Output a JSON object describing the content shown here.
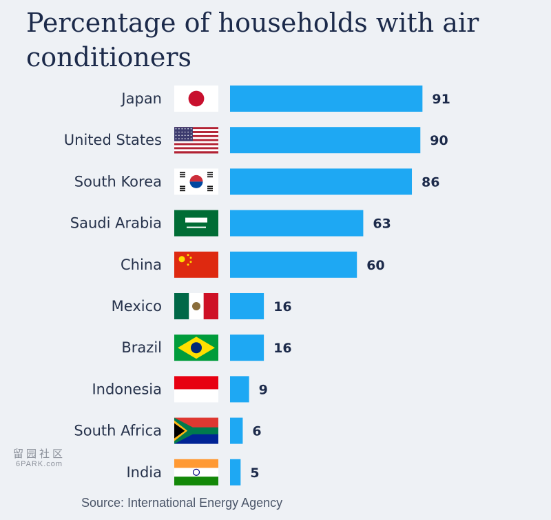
{
  "chart_data": {
    "type": "bar",
    "orientation": "horizontal",
    "title": "Percentage of households with air conditioners",
    "categories": [
      "Japan",
      "United States",
      "South Korea",
      "Saudi Arabia",
      "China",
      "Mexico",
      "Brazil",
      "Indonesia",
      "South Africa",
      "India"
    ],
    "values": [
      91,
      90,
      86,
      63,
      60,
      16,
      16,
      9,
      6,
      5
    ],
    "flags": [
      "japan-flag-icon",
      "us-flag-icon",
      "south-korea-flag-icon",
      "saudi-arabia-flag-icon",
      "china-flag-icon",
      "mexico-flag-icon",
      "brazil-flag-icon",
      "indonesia-flag-icon",
      "south-africa-flag-icon",
      "india-flag-icon"
    ],
    "xlim": [
      0,
      100
    ],
    "grid": false,
    "bar_color": "#1ea8f3",
    "source": "Source: International Energy Agency"
  },
  "watermark": {
    "glyphs": "留园社区",
    "text": "6PARK.com"
  }
}
